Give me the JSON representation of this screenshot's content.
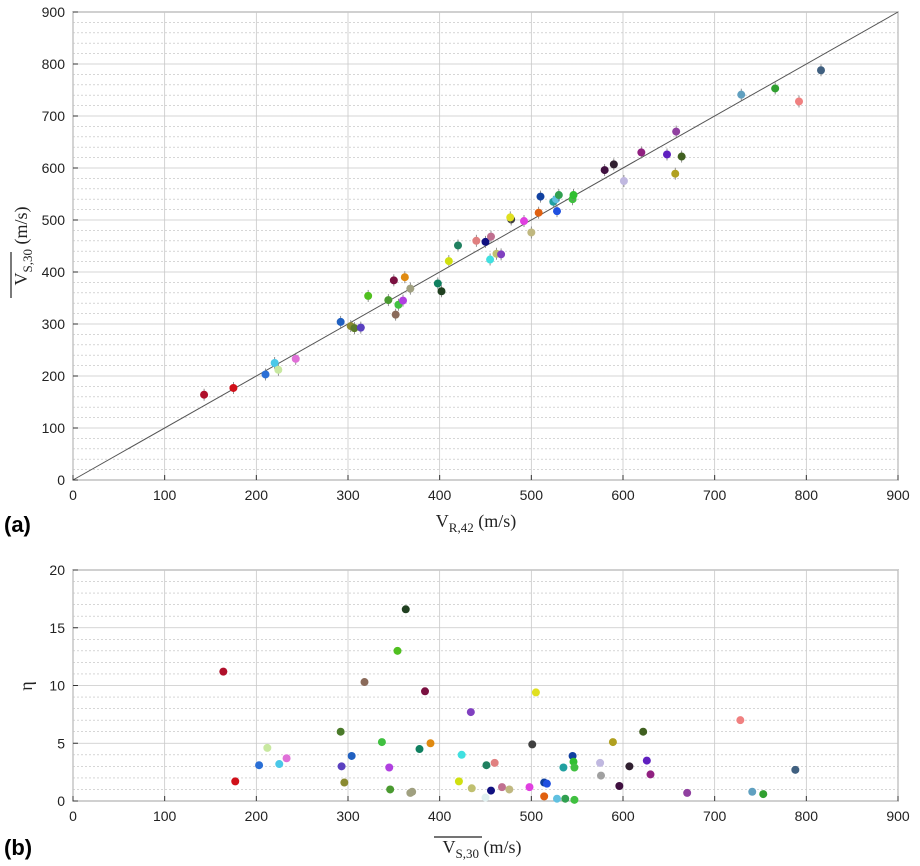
{
  "chart_data": [
    {
      "type": "scatter",
      "panel_label": "(a)",
      "xlabel": {
        "main": "V",
        "sub": "R,42",
        "unit": " (m/s)"
      },
      "ylabel": {
        "main": "V",
        "sub": "S,30",
        "unit": " (m/s)",
        "overline": true
      },
      "xlim": [
        0,
        900
      ],
      "ylim": [
        0,
        900
      ],
      "xticks": [
        0,
        100,
        200,
        300,
        400,
        500,
        600,
        700,
        800,
        900
      ],
      "yticks": [
        0,
        100,
        200,
        300,
        400,
        500,
        600,
        700,
        800,
        900
      ],
      "grid": true,
      "reference_line": {
        "from": [
          0,
          0
        ],
        "to": [
          900,
          900
        ],
        "color": "#555555"
      },
      "points": [
        {
          "x": 143,
          "y": 164,
          "color": "#b0102b"
        },
        {
          "x": 175,
          "y": 177,
          "color": "#d0101a"
        },
        {
          "x": 210,
          "y": 203,
          "color": "#2a6fd6"
        },
        {
          "x": 220,
          "y": 225,
          "color": "#4ac8e8"
        },
        {
          "x": 224,
          "y": 212,
          "color": "#c8e8a0"
        },
        {
          "x": 243,
          "y": 233,
          "color": "#e070d8"
        },
        {
          "x": 292,
          "y": 304,
          "color": "#2060c0"
        },
        {
          "x": 303,
          "y": 296,
          "color": "#8a8a30"
        },
        {
          "x": 307,
          "y": 292,
          "color": "#5a7a2a"
        },
        {
          "x": 314,
          "y": 293,
          "color": "#5a40c0"
        },
        {
          "x": 322,
          "y": 354,
          "color": "#50c020"
        },
        {
          "x": 344,
          "y": 346,
          "color": "#4a9a30"
        },
        {
          "x": 350,
          "y": 384,
          "color": "#7a1040"
        },
        {
          "x": 352,
          "y": 318,
          "color": "#8a6a5a"
        },
        {
          "x": 355,
          "y": 337,
          "color": "#40c040"
        },
        {
          "x": 360,
          "y": 345,
          "color": "#b040e0"
        },
        {
          "x": 362,
          "y": 390,
          "color": "#e08a10"
        },
        {
          "x": 368,
          "y": 368,
          "color": "#a0a080"
        },
        {
          "x": 398,
          "y": 378,
          "color": "#108060"
        },
        {
          "x": 402,
          "y": 363,
          "color": "#204020"
        },
        {
          "x": 410,
          "y": 421,
          "color": "#d0e010"
        },
        {
          "x": 420,
          "y": 451,
          "color": "#208060"
        },
        {
          "x": 440,
          "y": 460,
          "color": "#e08080"
        },
        {
          "x": 450,
          "y": 458,
          "color": "#101080"
        },
        {
          "x": 455,
          "y": 424,
          "color": "#40e0e0"
        },
        {
          "x": 456,
          "y": 468,
          "color": "#c07090"
        },
        {
          "x": 462,
          "y": 435,
          "color": "#c0c070"
        },
        {
          "x": 467,
          "y": 434,
          "color": "#8040c0"
        },
        {
          "x": 478,
          "y": 501,
          "color": "#404040"
        },
        {
          "x": 477,
          "y": 505,
          "color": "#e0e020"
        },
        {
          "x": 492,
          "y": 498,
          "color": "#e040e0"
        },
        {
          "x": 500,
          "y": 476,
          "color": "#c0b880"
        },
        {
          "x": 508,
          "y": 514,
          "color": "#e06010"
        },
        {
          "x": 510,
          "y": 545,
          "color": "#1040a0"
        },
        {
          "x": 524,
          "y": 535,
          "color": "#20a0a0"
        },
        {
          "x": 527,
          "y": 540,
          "color": "#60c0e0"
        },
        {
          "x": 528,
          "y": 517,
          "color": "#2050e0"
        },
        {
          "x": 530,
          "y": 548,
          "color": "#30a050"
        },
        {
          "x": 545,
          "y": 540,
          "color": "#40c040"
        },
        {
          "x": 546,
          "y": 548,
          "color": "#30c030"
        },
        {
          "x": 580,
          "y": 596,
          "color": "#401040"
        },
        {
          "x": 590,
          "y": 607,
          "color": "#302030"
        },
        {
          "x": 601,
          "y": 575,
          "color": "#c0b8e0"
        },
        {
          "x": 620,
          "y": 630,
          "color": "#902080"
        },
        {
          "x": 648,
          "y": 626,
          "color": "#6020c0"
        },
        {
          "x": 657,
          "y": 589,
          "color": "#b0a020"
        },
        {
          "x": 658,
          "y": 670,
          "color": "#9040a0"
        },
        {
          "x": 664,
          "y": 622,
          "color": "#406020"
        },
        {
          "x": 729,
          "y": 741,
          "color": "#60a0c0"
        },
        {
          "x": 766,
          "y": 753,
          "color": "#30a030"
        },
        {
          "x": 792,
          "y": 728,
          "color": "#f08080"
        },
        {
          "x": 816,
          "y": 788,
          "color": "#406080"
        }
      ]
    },
    {
      "type": "scatter",
      "panel_label": "(b)",
      "xlabel": {
        "main": "V",
        "sub": "S,30",
        "unit": " (m/s)",
        "overline": true
      },
      "ylabel": {
        "main": "η"
      },
      "xlim": [
        0,
        900
      ],
      "ylim": [
        0,
        20
      ],
      "xticks": [
        0,
        100,
        200,
        300,
        400,
        500,
        600,
        700,
        800,
        900
      ],
      "yticks": [
        0,
        5,
        10,
        15,
        20
      ],
      "grid": true,
      "points": [
        {
          "x": 164,
          "y": 11.2,
          "color": "#b0102b"
        },
        {
          "x": 177,
          "y": 1.7,
          "color": "#d0101a"
        },
        {
          "x": 203,
          "y": 3.1,
          "color": "#2a6fd6"
        },
        {
          "x": 212,
          "y": 4.6,
          "color": "#c8e8a0"
        },
        {
          "x": 225,
          "y": 3.2,
          "color": "#4ac8e8"
        },
        {
          "x": 233,
          "y": 3.7,
          "color": "#e070d8"
        },
        {
          "x": 292,
          "y": 6.0,
          "color": "#4a7a2a"
        },
        {
          "x": 293,
          "y": 3.0,
          "color": "#5a40c0"
        },
        {
          "x": 296,
          "y": 1.6,
          "color": "#8a8a30"
        },
        {
          "x": 304,
          "y": 3.9,
          "color": "#2060c0"
        },
        {
          "x": 318,
          "y": 10.3,
          "color": "#8a6a5a"
        },
        {
          "x": 337,
          "y": 5.1,
          "color": "#40c040"
        },
        {
          "x": 345,
          "y": 2.9,
          "color": "#b040e0"
        },
        {
          "x": 346,
          "y": 1.0,
          "color": "#4a9a30"
        },
        {
          "x": 354,
          "y": 13.0,
          "color": "#50c020"
        },
        {
          "x": 363,
          "y": 16.6,
          "color": "#204020"
        },
        {
          "x": 368,
          "y": 0.7,
          "color": "#a0a080"
        },
        {
          "x": 370,
          "y": 0.8,
          "color": "#a0a080"
        },
        {
          "x": 378,
          "y": 4.5,
          "color": "#108060"
        },
        {
          "x": 384,
          "y": 9.5,
          "color": "#7a1040"
        },
        {
          "x": 390,
          "y": 5.0,
          "color": "#e08a10"
        },
        {
          "x": 421,
          "y": 1.7,
          "color": "#d0e010"
        },
        {
          "x": 424,
          "y": 4.0,
          "color": "#40e0e0"
        },
        {
          "x": 434,
          "y": 7.7,
          "color": "#8040c0"
        },
        {
          "x": 435,
          "y": 1.1,
          "color": "#c0c070"
        },
        {
          "x": 451,
          "y": 3.1,
          "color": "#208060"
        },
        {
          "x": 450,
          "y": 0.3,
          "color": "#e0f0f0"
        },
        {
          "x": 456,
          "y": 0.9,
          "color": "#101080"
        },
        {
          "x": 460,
          "y": 3.3,
          "color": "#e08080"
        },
        {
          "x": 468,
          "y": 1.2,
          "color": "#c07090"
        },
        {
          "x": 476,
          "y": 1.0,
          "color": "#c0b880"
        },
        {
          "x": 498,
          "y": 1.2,
          "color": "#e040e0"
        },
        {
          "x": 501,
          "y": 4.9,
          "color": "#404040"
        },
        {
          "x": 505,
          "y": 9.4,
          "color": "#e0e020"
        },
        {
          "x": 514,
          "y": 0.4,
          "color": "#e06010"
        },
        {
          "x": 514,
          "y": 1.6,
          "color": "#1040a0"
        },
        {
          "x": 517,
          "y": 1.5,
          "color": "#2050e0"
        },
        {
          "x": 528,
          "y": 0.2,
          "color": "#60c0e0"
        },
        {
          "x": 535,
          "y": 2.9,
          "color": "#20a0a0"
        },
        {
          "x": 537,
          "y": 0.2,
          "color": "#30a050"
        },
        {
          "x": 545,
          "y": 3.9,
          "color": "#1040a0"
        },
        {
          "x": 546,
          "y": 3.4,
          "color": "#30c030"
        },
        {
          "x": 547,
          "y": 2.9,
          "color": "#40c040"
        },
        {
          "x": 547,
          "y": 0.1,
          "color": "#40c040"
        },
        {
          "x": 575,
          "y": 3.3,
          "color": "#c0b8e0"
        },
        {
          "x": 576,
          "y": 2.2,
          "color": "#a0a0a0"
        },
        {
          "x": 589,
          "y": 5.1,
          "color": "#b0a020"
        },
        {
          "x": 596,
          "y": 1.3,
          "color": "#401040"
        },
        {
          "x": 607,
          "y": 3.0,
          "color": "#302030"
        },
        {
          "x": 622,
          "y": 6.0,
          "color": "#406020"
        },
        {
          "x": 626,
          "y": 3.5,
          "color": "#6020c0"
        },
        {
          "x": 630,
          "y": 2.3,
          "color": "#902080"
        },
        {
          "x": 670,
          "y": 0.7,
          "color": "#9040a0"
        },
        {
          "x": 728,
          "y": 7.0,
          "color": "#f08080"
        },
        {
          "x": 741,
          "y": 0.8,
          "color": "#60a0c0"
        },
        {
          "x": 753,
          "y": 0.6,
          "color": "#30a030"
        },
        {
          "x": 788,
          "y": 2.7,
          "color": "#406080"
        }
      ]
    }
  ]
}
